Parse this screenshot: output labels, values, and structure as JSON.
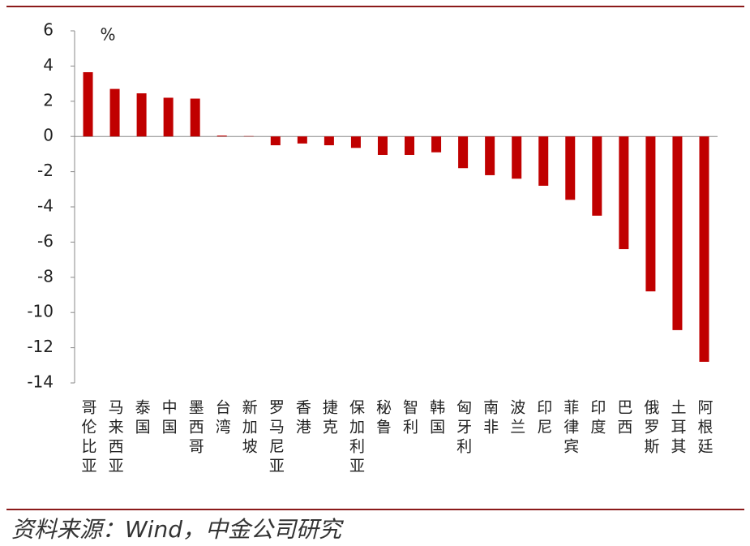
{
  "chart_data": {
    "type": "bar",
    "unit": "%",
    "categories": [
      "哥伦比亚",
      "马来西亚",
      "泰国",
      "中国",
      "墨西哥",
      "台湾",
      "新加坡",
      "罗马尼亚",
      "香港",
      "捷克",
      "保加利亚",
      "秘鲁",
      "智利",
      "韩国",
      "匈牙利",
      "南非",
      "波兰",
      "印尼",
      "菲律宾",
      "印度",
      "巴西",
      "俄罗斯",
      "土耳其",
      "阿根廷"
    ],
    "values": [
      3.65,
      2.7,
      2.45,
      2.2,
      2.15,
      0.05,
      0.02,
      -0.5,
      -0.4,
      -0.5,
      -0.65,
      -1.05,
      -1.05,
      -0.9,
      -1.8,
      -2.2,
      -2.4,
      -2.8,
      -3.6,
      -4.5,
      -6.4,
      -8.8,
      -11,
      -12.8
    ],
    "color": "#c00000",
    "ylim": [
      -14,
      6
    ],
    "yticks": [
      -14,
      -12,
      -10,
      -8,
      -6,
      -4,
      -2,
      0,
      2,
      4,
      6
    ],
    "grid": false,
    "source": "资料来源：Wind，中金公司研究"
  }
}
